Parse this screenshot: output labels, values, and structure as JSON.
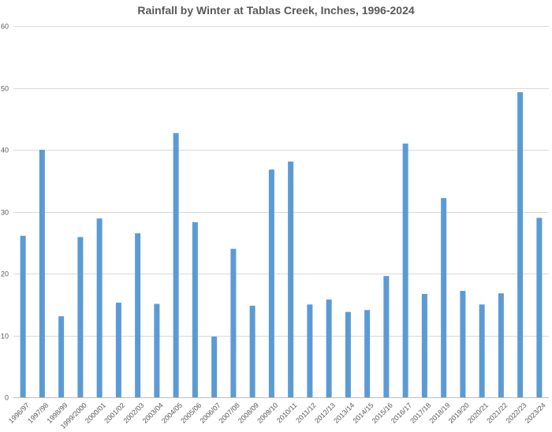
{
  "chart_data": {
    "type": "bar",
    "title": "Rainfall by Winter at Tablas Creek, Inches, 1996-2024",
    "xlabel": "",
    "ylabel": "",
    "ylim": [
      0,
      60
    ],
    "yticks": [
      0,
      10,
      20,
      30,
      40,
      50,
      60
    ],
    "grid": true,
    "legend": "none",
    "bar_color": "#5b9bd5",
    "categories": [
      "1996/97",
      "1997/98",
      "1998/99",
      "1999/2000",
      "2000/01",
      "2001/02",
      "2002/03",
      "2003/04",
      "2004/05",
      "2005/06",
      "2006/07",
      "2007/08",
      "2008/09",
      "2009/10",
      "2010/11",
      "2011/12",
      "2012/13",
      "2013/14",
      "2014/15",
      "2015/16",
      "2016/17",
      "2017/18",
      "2018/19",
      "2019/20",
      "2020/21",
      "2021/22",
      "2022/23",
      "2023/24"
    ],
    "values": [
      26.1,
      40.0,
      13.1,
      25.9,
      28.9,
      15.3,
      26.5,
      15.1,
      42.7,
      28.3,
      9.8,
      24.0,
      14.8,
      36.8,
      38.1,
      15.0,
      15.8,
      13.8,
      14.1,
      19.6,
      41.0,
      16.7,
      32.2,
      17.2,
      15.0,
      16.8,
      49.3,
      29.0
    ]
  }
}
